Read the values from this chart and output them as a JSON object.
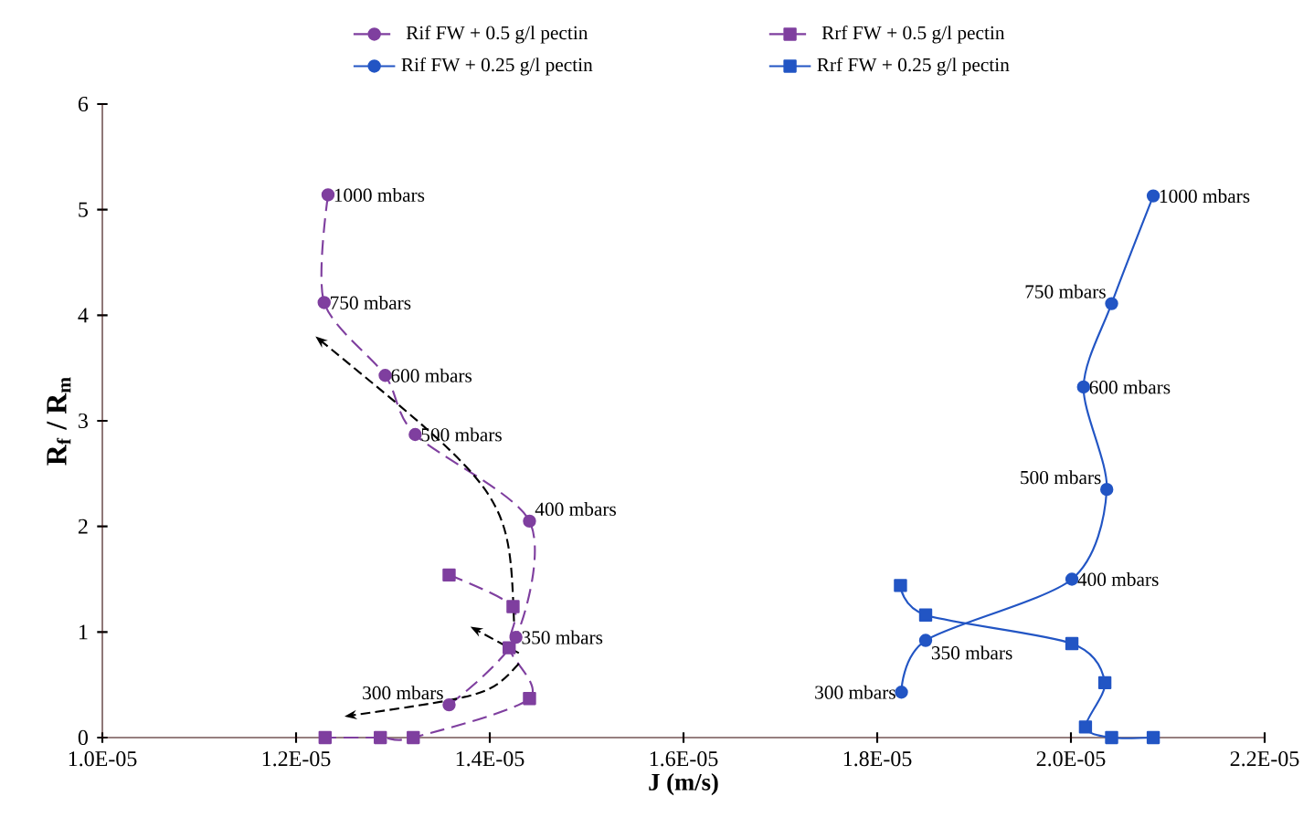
{
  "chart_data": {
    "type": "line",
    "xlabel": "J (m/s)",
    "ylabel": "R$_{f}$ / R$_{m}$",
    "xlim": [
      1e-05,
      2.2e-05
    ],
    "ylim": [
      0,
      6
    ],
    "xticks": [
      {
        "value": 1e-05,
        "label": "1.0E-05"
      },
      {
        "value": 1.2e-05,
        "label": "1.2E-05"
      },
      {
        "value": 1.4e-05,
        "label": "1.4E-05"
      },
      {
        "value": 1.6e-05,
        "label": "1.6E-05"
      },
      {
        "value": 1.8e-05,
        "label": "1.8E-05"
      },
      {
        "value": 2e-05,
        "label": "2.0E-05"
      },
      {
        "value": 2.2e-05,
        "label": "2.2E-05"
      }
    ],
    "yticks": [
      0,
      1,
      2,
      3,
      4,
      5,
      6
    ],
    "legend": "top",
    "grid": false,
    "series": [
      {
        "name": "Rif FW + 0.5 g/l pectin",
        "color": "#7f3f9f",
        "marker": "circle",
        "line_style": "dashed",
        "x": [
          1.358e-05,
          1.427e-05,
          1.441e-05,
          1.323e-05,
          1.292e-05,
          1.229e-05,
          1.233e-05
        ],
        "values": [
          0.31,
          0.95,
          2.05,
          2.87,
          3.43,
          4.12,
          5.14
        ]
      },
      {
        "name": "Rrf FW + 0.5 g/l pectin",
        "color": "#7f3f9f",
        "marker": "square",
        "line_style": "dashed",
        "x": [
          1.358e-05,
          1.424e-05,
          1.42e-05,
          1.441e-05,
          1.321e-05,
          1.287e-05,
          1.23e-05
        ],
        "values": [
          1.54,
          1.24,
          0.85,
          0.37,
          0,
          0,
          0
        ]
      },
      {
        "name": "Rif FW + 0.25 g/l pectin",
        "color": "#2255c4",
        "marker": "circle",
        "line_style": "solid",
        "x": [
          1.825e-05,
          1.85e-05,
          2.001e-05,
          2.037e-05,
          2.013e-05,
          2.042e-05,
          2.085e-05
        ],
        "values": [
          0.43,
          0.92,
          1.5,
          2.35,
          3.32,
          4.11,
          5.13
        ]
      },
      {
        "name": "Rrf FW + 0.25 g/l pectin",
        "color": "#2255c4",
        "marker": "square",
        "line_style": "solid",
        "x": [
          1.824e-05,
          1.85e-05,
          2.001e-05,
          2.035e-05,
          2.015e-05,
          2.042e-05,
          2.085e-05
        ],
        "values": [
          1.44,
          1.16,
          0.89,
          0.52,
          0.1,
          0,
          0
        ]
      }
    ],
    "annotations": [
      {
        "text": "1000 mbars",
        "x": 1.233e-05,
        "y": 5.14
      },
      {
        "text": "750 mbars",
        "x": 1.229e-05,
        "y": 4.12
      },
      {
        "text": "600 mbars",
        "x": 1.292e-05,
        "y": 3.43
      },
      {
        "text": "500 mbars",
        "x": 1.323e-05,
        "y": 2.87
      },
      {
        "text": "400 mbars",
        "x": 1.441e-05,
        "y": 2.05
      },
      {
        "text": "350 mbars",
        "x": 1.427e-05,
        "y": 0.95
      },
      {
        "text": "300 mbars",
        "x": 1.358e-05,
        "y": 0.31
      },
      {
        "text": "1000 mbars",
        "x": 2.085e-05,
        "y": 5.13
      },
      {
        "text": "750 mbars",
        "x": 2.042e-05,
        "y": 4.11
      },
      {
        "text": "600 mbars",
        "x": 2.013e-05,
        "y": 3.32
      },
      {
        "text": "500 mbars",
        "x": 2.037e-05,
        "y": 2.35
      },
      {
        "text": "400 mbars",
        "x": 2.001e-05,
        "y": 1.5
      },
      {
        "text": "350 mbars",
        "x": 1.85e-05,
        "y": 0.92
      },
      {
        "text": "300 mbars",
        "x": 1.825e-05,
        "y": 0.43
      }
    ]
  }
}
